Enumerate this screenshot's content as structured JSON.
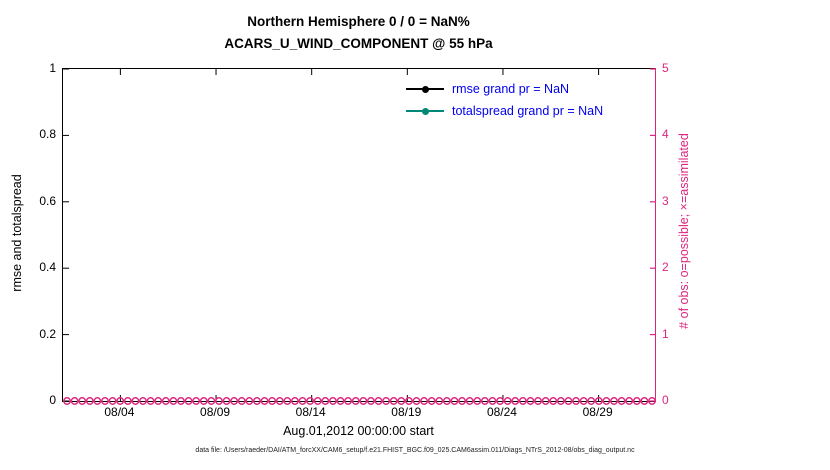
{
  "title": {
    "line1": "Northern Hemisphere 0 / 0 = NaN%",
    "line2": "ACARS_U_WIND_COMPONENT @ 55 hPa"
  },
  "legend": [
    {
      "label": "rmse grand pr = NaN",
      "color": "#000000"
    },
    {
      "label": "totalspread grand pr = NaN",
      "color": "#008878"
    }
  ],
  "footer": "data file: /Users/raeder/DAI/ATM_forcXX/CAM6_setup/f.e21.FHIST_BGC.f09_025.CAM6assim.011/Diags_NTrS_2012-08/obs_diag_output.nc",
  "colors": {
    "magenta": "#dc267f",
    "axis_black": "#000000",
    "legend_text_blue": "#0000ee"
  },
  "chart_data": {
    "type": "line",
    "title": "Northern Hemisphere 0 / 0 = NaN%",
    "subtitle": "ACARS_U_WIND_COMPONENT @ 55 hPa",
    "xlabel": "Aug.01,2012 00:00:00 start",
    "ylabel_left": "rmse and totalspread",
    "ylabel_right": "# of obs: o=possible; ×=assimilated",
    "x_tick_labels": [
      "08/04",
      "08/09",
      "08/14",
      "08/19",
      "08/24",
      "08/29"
    ],
    "x_tick_days": [
      4,
      9,
      14,
      19,
      24,
      29
    ],
    "x_range_days": [
      1,
      32
    ],
    "y_left_ticks": [
      "0",
      "0.2",
      "0.4",
      "0.6",
      "0.8",
      "1"
    ],
    "y_left_range": [
      0,
      1
    ],
    "y_right_ticks": [
      "0",
      "1",
      "2",
      "3",
      "4",
      "5"
    ],
    "y_right_range": [
      0,
      5
    ],
    "grid": false,
    "legend_position": "upper center inside plot",
    "series": [
      {
        "name": "rmse grand pr = NaN",
        "color": "#000000",
        "values": [],
        "note": "no data plotted, grand prior = NaN"
      },
      {
        "name": "totalspread grand pr = NaN",
        "color": "#008878",
        "values": [],
        "note": "no data plotted, grand prior = NaN"
      }
    ],
    "obs_counts": {
      "marker": "o",
      "color": "#dc267f",
      "possible_per_bin": 0,
      "assimilated_per_bin": 0,
      "note": "open circles at y=0 across the full month (0 possible, 0 assimilated)",
      "marker_count": 78
    }
  }
}
